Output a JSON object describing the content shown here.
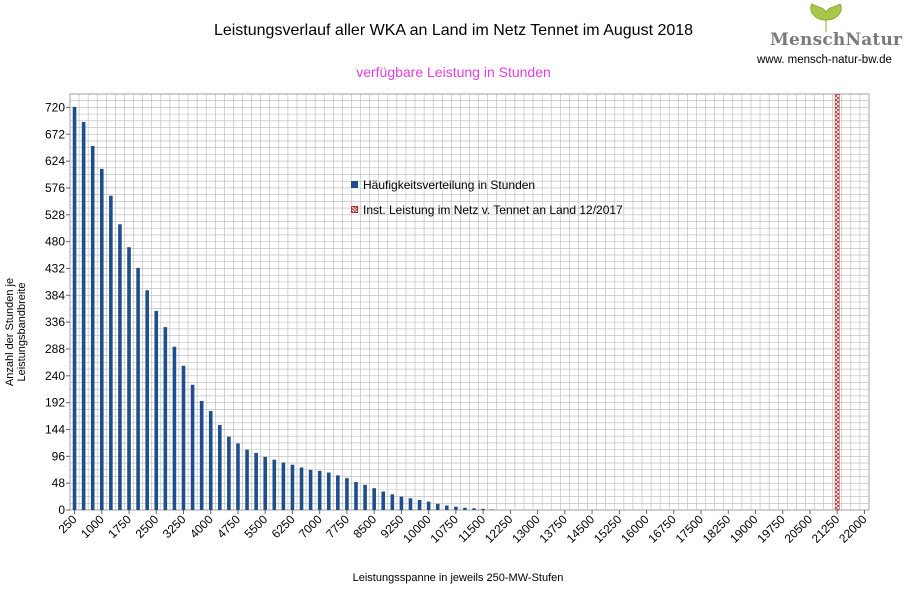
{
  "header": {
    "title": "Leistungsverlauf aller WKA an Land im Netz Tennet im August 2018",
    "subtitle": "verfügbare Leistung in Stunden",
    "logo_text": "MenschNatur",
    "logo_url": "www. mensch-natur-bw.de"
  },
  "colors": {
    "bars": "#1f4e8c",
    "installed_marker": "#b03030",
    "subtitle": "#e040e0",
    "grid": "#b8b8b8",
    "logo_leaf": "#a8c84a"
  },
  "chart_data": {
    "type": "bar",
    "title": "Leistungsverlauf aller WKA an Land im Netz Tennet im August 2018",
    "subtitle": "verfügbare Leistung in Stunden",
    "xlabel": "Leistungsspanne in jeweils 250-MW-Stufen",
    "ylabel": "Anzahl der Stunden je Leistungsbandbreite",
    "ylim": [
      0,
      744
    ],
    "y_ticks": [
      0,
      48,
      96,
      144,
      192,
      240,
      288,
      336,
      384,
      432,
      480,
      528,
      576,
      624,
      672,
      720
    ],
    "x_tick_labels": [
      "250",
      "1000",
      "1750",
      "2500",
      "3250",
      "4000",
      "4750",
      "5500",
      "6250",
      "7000",
      "7750",
      "8500",
      "9250",
      "10000",
      "10750",
      "11500",
      "12250",
      "13000",
      "13750",
      "14500",
      "15250",
      "16000",
      "16750",
      "17500",
      "18250",
      "19000",
      "19750",
      "20500",
      "21250",
      "22000"
    ],
    "x_range": [
      250,
      22000
    ],
    "x_step": 250,
    "grid": true,
    "legend_position": "center-left",
    "series": [
      {
        "name": "Häufigkeitsverteilung in Stunden",
        "x": [
          250,
          500,
          750,
          1000,
          1250,
          1500,
          1750,
          2000,
          2250,
          2500,
          2750,
          3000,
          3250,
          3500,
          3750,
          4000,
          4250,
          4500,
          4750,
          5000,
          5250,
          5500,
          5750,
          6000,
          6250,
          6500,
          6750,
          7000,
          7250,
          7500,
          7750,
          8000,
          8250,
          8500,
          8750,
          9000,
          9250,
          9500,
          9750,
          10000,
          10250,
          10500,
          10750,
          11000,
          11250,
          11500,
          11750
        ],
        "values": [
          721,
          694,
          651,
          610,
          562,
          511,
          470,
          433,
          393,
          356,
          327,
          292,
          258,
          224,
          195,
          177,
          152,
          131,
          119,
          108,
          102,
          95,
          90,
          85,
          81,
          76,
          72,
          70,
          67,
          62,
          57,
          50,
          45,
          39,
          33,
          28,
          24,
          21,
          18,
          15,
          11,
          8,
          6,
          4,
          3,
          2,
          1
        ]
      },
      {
        "name": "Inst. Leistung im Netz v. Tennet an Land 12/2017",
        "type": "marker-band",
        "x": 21250,
        "value": 744
      }
    ]
  }
}
